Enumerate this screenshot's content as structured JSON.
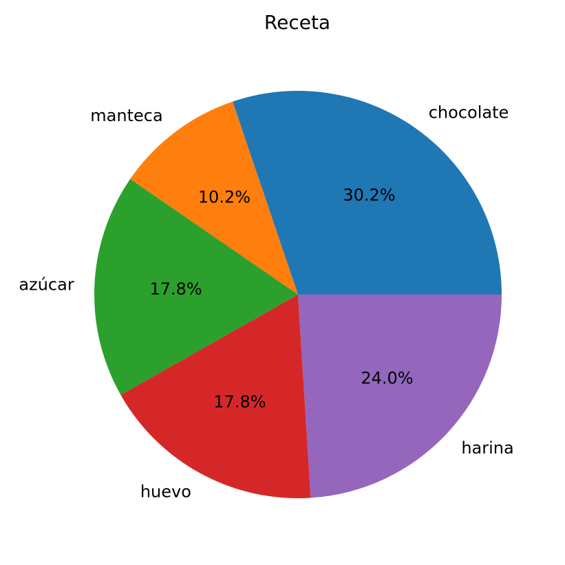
{
  "chart_data": {
    "type": "pie",
    "title": "Receta",
    "slices": [
      {
        "label": "chocolate",
        "value": 30.2,
        "pct_label": "30.2%",
        "color": "#1f77b4"
      },
      {
        "label": "manteca",
        "value": 10.2,
        "pct_label": "10.2%",
        "color": "#ff7f0e"
      },
      {
        "label": "azúcar",
        "value": 17.8,
        "pct_label": "17.8%",
        "color": "#2ca02c"
      },
      {
        "label": "huevo",
        "value": 17.8,
        "pct_label": "17.8%",
        "color": "#d62728"
      },
      {
        "label": "harina",
        "value": 24.0,
        "pct_label": "24.0%",
        "color": "#9467bd"
      }
    ],
    "start_angle_deg": 0,
    "direction": "counterclockwise"
  }
}
